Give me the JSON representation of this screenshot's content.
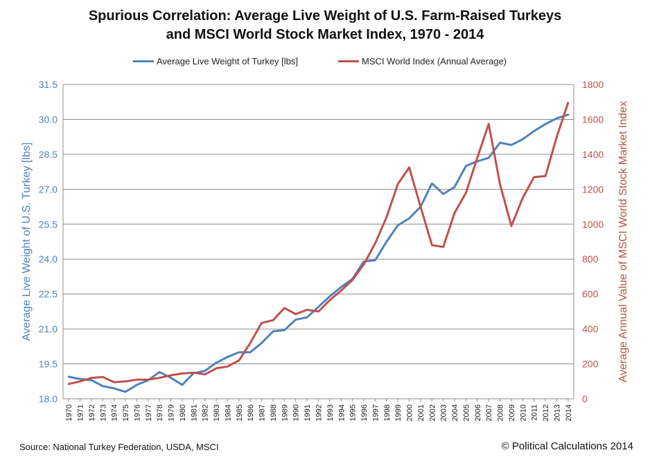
{
  "title_line1": "Spurious Correlation: Average Live Weight of U.S. Farm-Raised Turkeys",
  "title_line2": "and MSCI World Stock Market Index, 1970 - 2014",
  "source": "Source: National Turkey Federation, USDA, MSCI",
  "credit": "© Political Calculations 2014",
  "chart_data": {
    "type": "line",
    "x": [
      1970,
      1971,
      1972,
      1973,
      1974,
      1975,
      1976,
      1977,
      1978,
      1979,
      1980,
      1981,
      1982,
      1983,
      1984,
      1985,
      1986,
      1987,
      1988,
      1989,
      1990,
      1991,
      1992,
      1993,
      1994,
      1995,
      1996,
      1997,
      1998,
      1999,
      2000,
      2001,
      2002,
      2003,
      2004,
      2005,
      2006,
      2007,
      2008,
      2009,
      2010,
      2011,
      2012,
      2013,
      2014
    ],
    "x_tick_labels": [
      "1970",
      "1971",
      "1972",
      "1973",
      "1974",
      "1975",
      "1976",
      "1977",
      "1978",
      "1979",
      "1980",
      "1981",
      "1982",
      "1983",
      "1984",
      "1985",
      "1986",
      "1987",
      "1988",
      "1989",
      "1990",
      "1991",
      "1992",
      "1993",
      "1994",
      "1995",
      "1996",
      "1997",
      "1998",
      "1999",
      "2000",
      "2001",
      "2002",
      "2003",
      "2004",
      "2005",
      "2006",
      "2007",
      "2008",
      "2009",
      "2010",
      "2011",
      "2012",
      "2013",
      "2014"
    ],
    "series": [
      {
        "name": "Average Live Weight of Turkey [lbs]",
        "color": "#4f81bd",
        "axis": "left",
        "values": [
          18.95,
          18.85,
          18.8,
          18.55,
          18.45,
          18.3,
          18.6,
          18.8,
          19.15,
          18.9,
          18.6,
          19.1,
          19.2,
          19.55,
          19.8,
          20.0,
          20.0,
          20.4,
          20.9,
          20.95,
          21.4,
          21.5,
          21.95,
          22.4,
          22.8,
          23.15,
          23.9,
          23.95,
          24.75,
          25.45,
          25.75,
          26.25,
          27.25,
          26.8,
          27.1,
          28.0,
          28.2,
          28.35,
          29.0,
          28.9,
          29.15,
          29.5,
          29.8,
          30.05,
          30.2
        ]
      },
      {
        "name": "MSCI World Index (Annual Average)",
        "color": "#c0504d",
        "axis": "right",
        "values": [
          85,
          100,
          120,
          125,
          95,
          100,
          110,
          110,
          120,
          135,
          145,
          150,
          140,
          175,
          185,
          220,
          320,
          435,
          450,
          520,
          485,
          510,
          500,
          565,
          620,
          680,
          770,
          890,
          1040,
          1230,
          1325,
          1100,
          880,
          870,
          1065,
          1180,
          1380,
          1575,
          1230,
          990,
          1150,
          1270,
          1275,
          1500,
          1695
        ]
      }
    ],
    "y_left": {
      "label": "Average Live Weight of U.S. Turkey [lbs]",
      "ylim": [
        18.0,
        31.5
      ],
      "ticks": [
        "18.0",
        "19.5",
        "21.0",
        "22.5",
        "24.0",
        "25.5",
        "27.0",
        "28.5",
        "30.0",
        "31.5"
      ],
      "color": "#4f81bd"
    },
    "y_right": {
      "label": "Average Annual Value of MSCI World Stock Market Index",
      "ylim": [
        0,
        1800
      ],
      "ticks": [
        "0",
        "200",
        "400",
        "600",
        "800",
        "1000",
        "1200",
        "1400",
        "1600",
        "1800"
      ],
      "color": "#c0504d"
    },
    "grid": true,
    "legend_position": "top-center"
  }
}
